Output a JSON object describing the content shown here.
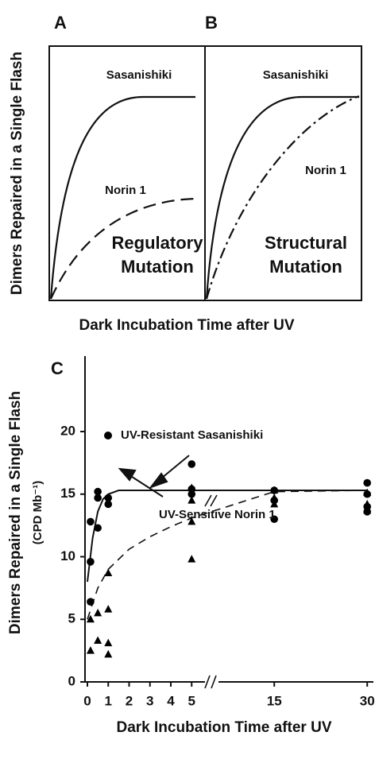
{
  "chart_data": [
    {
      "type": "line",
      "label": "A",
      "y_label": "Dimers Repaired in a Single Flash",
      "x_label": "Dark Incubation Time after UV",
      "annotations": [
        "Sasanishiki",
        "Norin 1",
        "Regulatory",
        "Mutation"
      ]
    },
    {
      "type": "line",
      "label": "B",
      "annotations": [
        "Sasanishiki",
        "Norin 1",
        "Structural",
        "Mutation"
      ]
    },
    {
      "type": "scatter",
      "label": "C",
      "y_label": "Dimers Repaired in a Single Flash",
      "y_unit": "(CPD Mb⁻¹)",
      "x_label": "Dark Incubation Time after UV",
      "xlim_segments": [
        [
          0,
          5.6
        ],
        [
          6,
          31
        ]
      ],
      "ylim": [
        0,
        26
      ],
      "xticks": [
        0,
        1,
        2,
        3,
        4,
        5,
        15,
        30
      ],
      "yticks": [
        0,
        5,
        10,
        15,
        20
      ],
      "series": [
        {
          "name": "UV-Resistant Sasanishiki",
          "marker": "circle",
          "color": "#000000",
          "legend_marker": true,
          "x": [
            0.15,
            0.15,
            0.15,
            0.5,
            0.5,
            0.5,
            1,
            1,
            5,
            5,
            5,
            15,
            15,
            15,
            30,
            30,
            30,
            30
          ],
          "values": [
            12.8,
            9.6,
            6.4,
            15.2,
            14.7,
            12.3,
            14.7,
            14.2,
            17.4,
            15.4,
            15.0,
            15.3,
            14.5,
            13.0,
            15.9,
            15.0,
            14.0,
            13.6
          ]
        },
        {
          "name": "UV-Sensitive Norin 1",
          "marker": "triangle",
          "color": "#000000",
          "legend_marker": false,
          "x": [
            0.15,
            0.15,
            0.5,
            0.5,
            1,
            1,
            1,
            1,
            5,
            5,
            5,
            5,
            15,
            15,
            15,
            30,
            30,
            30
          ],
          "values": [
            5.0,
            2.5,
            5.5,
            3.3,
            8.7,
            5.8,
            3.1,
            2.2,
            15.5,
            14.5,
            12.8,
            9.8,
            15.3,
            14.7,
            14.2,
            15.1,
            14.2,
            13.7
          ]
        }
      ],
      "fits": [
        {
          "dash": "solid",
          "x": [
            0,
            0.25,
            0.5,
            0.75,
            1,
            1.5,
            2,
            3,
            5,
            15,
            30
          ],
          "values": [
            8,
            11.5,
            13.6,
            14.6,
            15.0,
            15.3,
            15.3,
            15.3,
            15.3,
            15.3,
            15.3
          ]
        },
        {
          "dash": "dashed",
          "x": [
            0,
            0.5,
            1,
            2,
            3,
            4,
            5,
            15,
            30
          ],
          "values": [
            5,
            7.5,
            9,
            10.6,
            11.6,
            12.4,
            13.1,
            15.2,
            15.3
          ]
        }
      ]
    }
  ]
}
